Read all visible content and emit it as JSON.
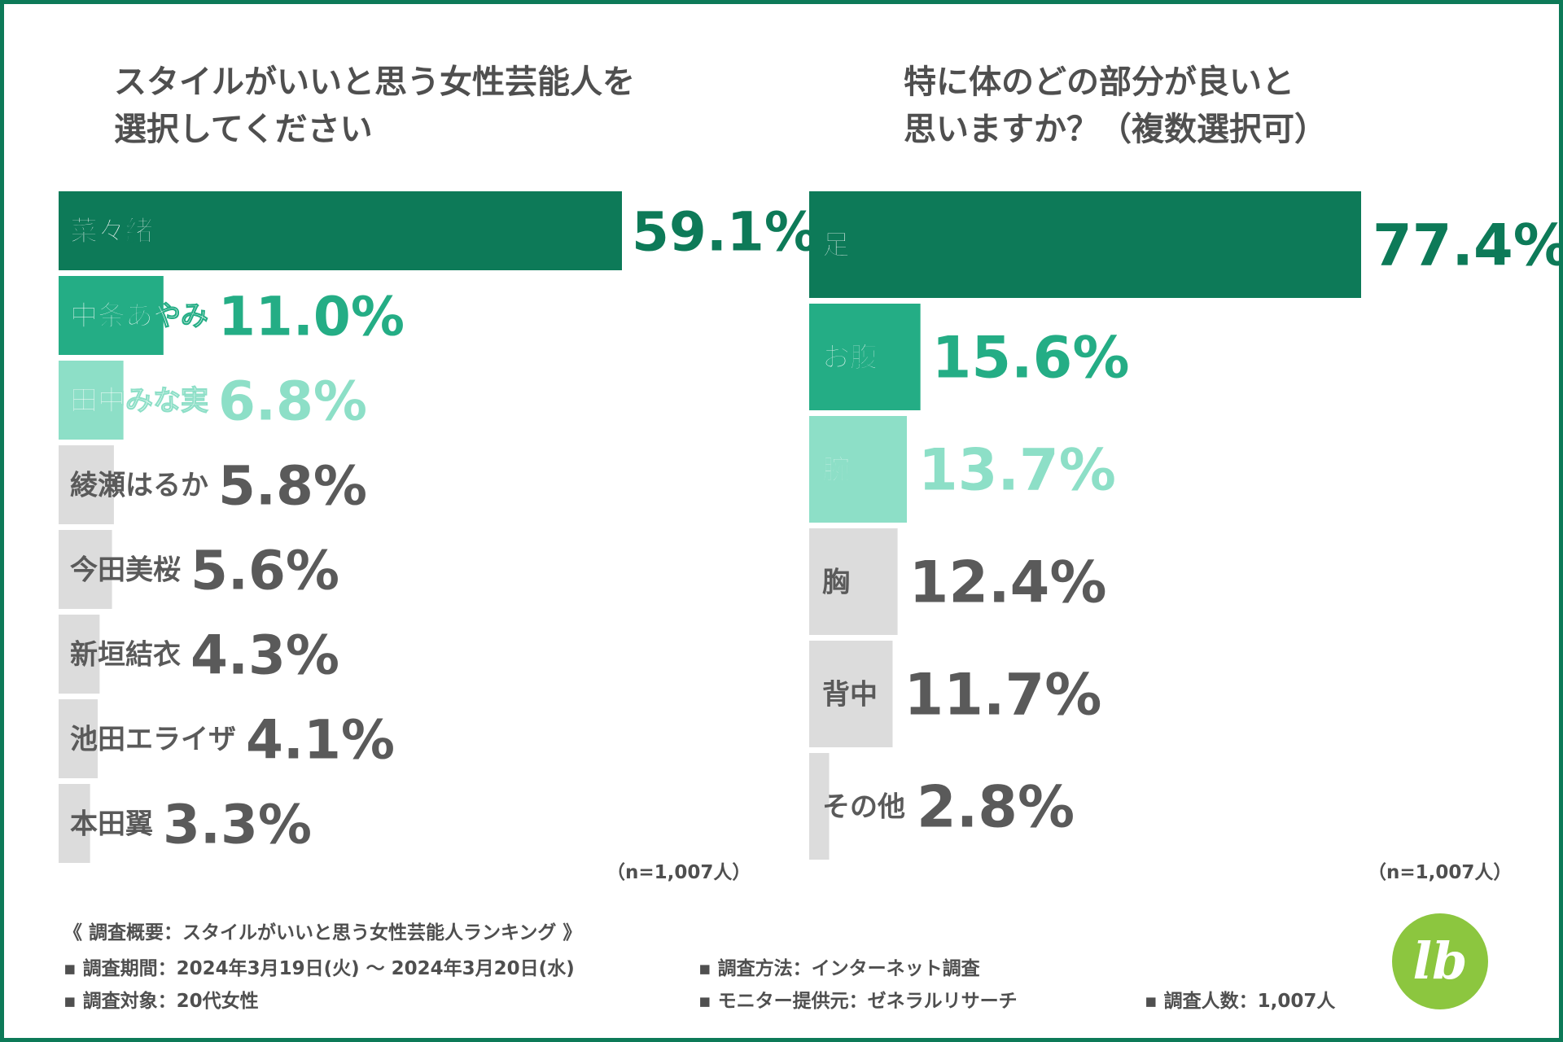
{
  "chart_data": [
    {
      "type": "bar",
      "orientation": "horizontal",
      "title": [
        "スタイルがいいと思う女性芸能人を",
        "選択してください"
      ],
      "categories": [
        "菜々緒",
        "中条あやみ",
        "田中みな実",
        "綾瀬はるか",
        "今田美桜",
        "新垣結衣",
        "池田エライザ",
        "本田翼"
      ],
      "values": [
        59.1,
        11.0,
        6.8,
        5.8,
        5.6,
        4.3,
        4.1,
        3.3
      ],
      "value_labels": [
        "59.1%",
        "11.0%",
        "6.8%",
        "5.8%",
        "5.6%",
        "4.3%",
        "4.1%",
        "3.3%"
      ],
      "unit": "%",
      "xlim": [
        0,
        59.1
      ],
      "note": "（n=1,007人）"
    },
    {
      "type": "bar",
      "orientation": "horizontal",
      "title": [
        "特に体のどの部分が良いと",
        "思いますか？（複数選択可）"
      ],
      "categories": [
        "足",
        "お腹",
        "腕",
        "胸",
        "背中",
        "その他"
      ],
      "values": [
        77.4,
        15.6,
        13.7,
        12.4,
        11.7,
        2.8
      ],
      "value_labels": [
        "77.4%",
        "15.6%",
        "13.7%",
        "12.4%",
        "11.7%",
        "2.8%"
      ],
      "unit": "%",
      "xlim": [
        0,
        77.4
      ],
      "note": "（n=1,007人）"
    }
  ],
  "colors": {
    "rank1": "#0d7a58",
    "rank2": "#24ad85",
    "rank3": "#8ddfc7",
    "other_bar": "#dcdcdc",
    "other_text": "#5a5a5a",
    "frame": "#0d7a58",
    "logo": "#8cc63f"
  },
  "footer": {
    "heading": "《 調査概要：スタイルがいいと思う女性芸能人ランキング 》",
    "items": [
      "▪ 調査期間：2024年3月19日(火) 〜 2024年3月20日(水)",
      "▪ 調査方法：インターネット調査",
      "▪ 調査対象：20代女性",
      "▪ モニター提供元：ゼネラルリサーチ",
      "▪ 調査人数：1,007人"
    ]
  },
  "logo": {
    "text": "lb"
  }
}
